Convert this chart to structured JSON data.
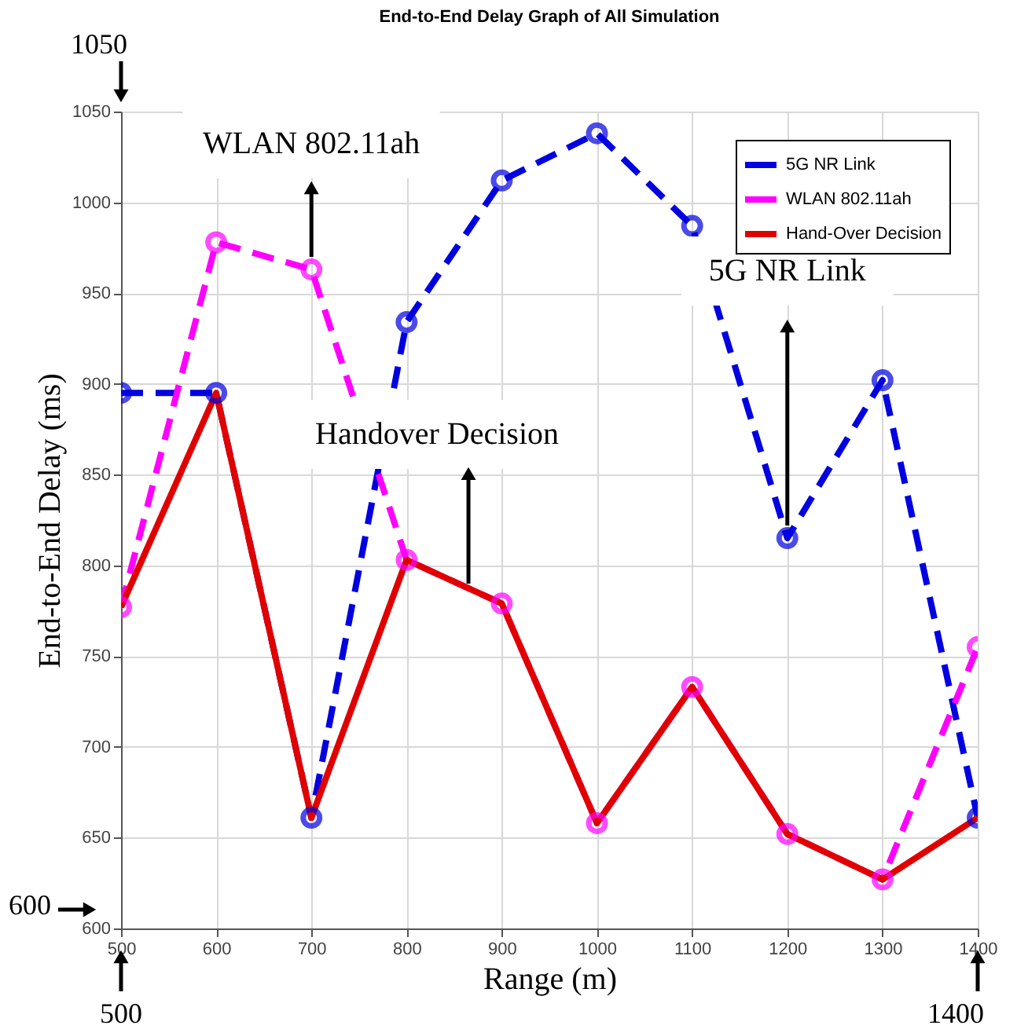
{
  "chart_data": {
    "type": "line",
    "title": "End-to-End Delay Graph of All Simulation",
    "xlabel": "Range (m)",
    "ylabel": "End-to-End Delay (ms)",
    "x": [
      500,
      600,
      700,
      800,
      900,
      1000,
      1100,
      1200,
      1300,
      1400
    ],
    "series": [
      {
        "name": "5G NR Link",
        "color": "#0000e0",
        "line_style": "dashed",
        "marker": "circle",
        "values": [
          895,
          895,
          661,
          934,
          1012,
          1038,
          987,
          815,
          902,
          661
        ]
      },
      {
        "name": "WLAN 802.11ah",
        "color": "#ff00ff",
        "line_style": "dashed",
        "marker": "circle",
        "values": [
          777,
          978,
          963,
          803,
          779,
          658,
          733,
          652,
          627,
          755
        ]
      },
      {
        "name": "Hand-Over Decision",
        "color": "#e00000",
        "line_style": "solid",
        "marker": "none",
        "values": [
          777,
          895,
          661,
          803,
          779,
          658,
          733,
          652,
          627,
          661
        ]
      }
    ],
    "xlim": [
      500,
      1400
    ],
    "xticks": [
      500,
      600,
      700,
      800,
      900,
      1000,
      1100,
      1200,
      1300,
      1400
    ],
    "ylim": [
      600,
      1050
    ],
    "yticks": [
      600,
      650,
      700,
      750,
      800,
      850,
      900,
      950,
      1000,
      1050
    ],
    "grid": true,
    "legend": "top right",
    "annotations": [
      {
        "text": "WLAN 802.11ah",
        "x": 700,
        "y": 963
      },
      {
        "text": "5G NR Link",
        "x": 1200,
        "y": 815
      },
      {
        "text": "Handover Decision",
        "x": 865,
        "y": 790
      },
      "1050",
      "600",
      "500",
      "1400"
    ]
  }
}
